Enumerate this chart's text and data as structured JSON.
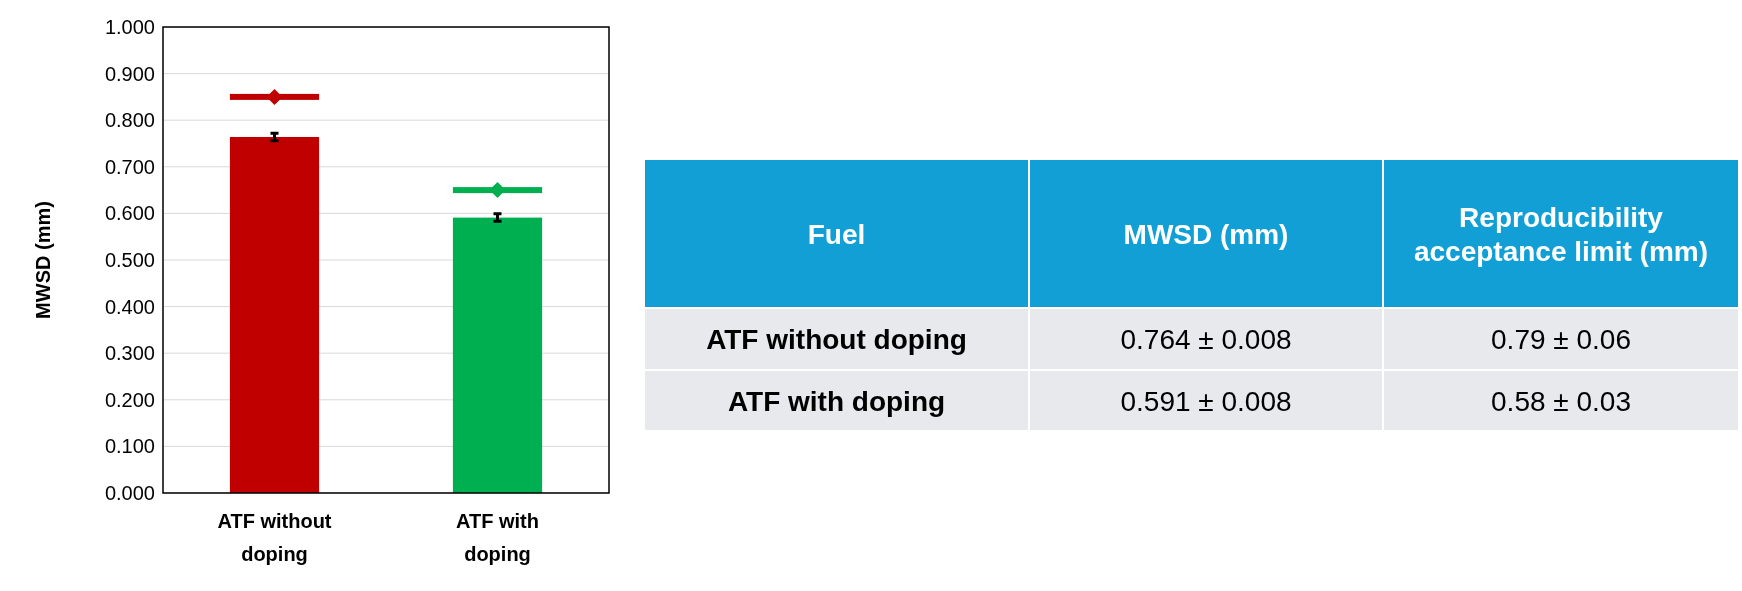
{
  "chart_data": {
    "type": "bar",
    "ylabel": "MWSD (mm)",
    "categories": [
      "ATF without doping",
      "ATF with doping"
    ],
    "series": [
      {
        "colors": [
          "#c00000",
          "#00b050"
        ],
        "values": [
          0.764,
          0.591
        ],
        "errors": [
          0.008,
          0.008
        ]
      },
      {
        "type": "scatter",
        "marker": "diamond",
        "colors": [
          "#c00000",
          "#00b050"
        ],
        "values": [
          0.85,
          0.65
        ]
      }
    ],
    "ylim": [
      0,
      1
    ],
    "yticks": [
      {
        "value": 0,
        "label": "0.000"
      },
      {
        "value": 0.1,
        "label": "0.100"
      },
      {
        "value": 0.2,
        "label": "0.200"
      },
      {
        "value": 0.3,
        "label": "0.300"
      },
      {
        "value": 0.4,
        "label": "0.400"
      },
      {
        "value": 0.5,
        "label": "0.500"
      },
      {
        "value": 0.6,
        "label": "0.600"
      },
      {
        "value": 0.7,
        "label": "0.700"
      },
      {
        "value": 0.8,
        "label": "0.800"
      },
      {
        "value": 0.9,
        "label": "0.900"
      },
      {
        "value": 1,
        "label": "1.000"
      }
    ],
    "grid": "y",
    "annotations": [
      "Fuel",
      "MWSD (mm)",
      "Reproducibility acceptance limit (mm)",
      "0.764 ± 0.008",
      "0.79 ± 0.06",
      "0.591 ± 0.008",
      "0.58 ± 0.03"
    ]
  }
}
